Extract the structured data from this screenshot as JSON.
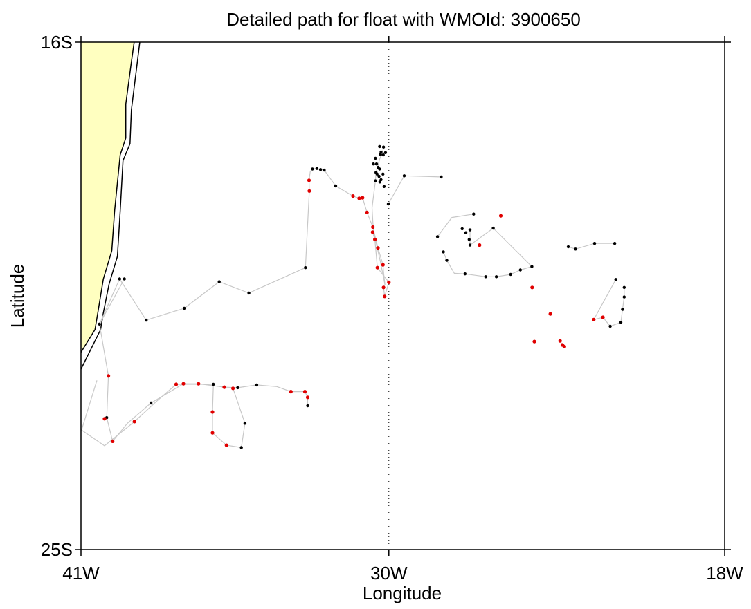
{
  "chart_data": {
    "type": "scatter",
    "title": "Detailed path for float with WMOId: 3900650",
    "xlabel": "Longitude",
    "ylabel": "Latitude",
    "xlim": [
      -41,
      -18
    ],
    "ylim": [
      -25,
      -16
    ],
    "x_ticks": [
      {
        "value": -41,
        "label": "41W"
      },
      {
        "value": -30,
        "label": "30W"
      },
      {
        "value": -18,
        "label": "18W"
      }
    ],
    "y_ticks": [
      {
        "value": -16,
        "label": "16S"
      },
      {
        "value": -25,
        "label": "25S"
      }
    ],
    "reference_line": {
      "lon": -30,
      "style": "dotted"
    },
    "colors": {
      "land": "#ffffc0",
      "track": "#c8c8c8",
      "red": "#e00000",
      "black": "#000000"
    },
    "coastline": [
      [
        -39.1,
        -16
      ],
      [
        -39.2,
        -16.35
      ],
      [
        -39.4,
        -17.1
      ],
      [
        -39.4,
        -17.7
      ],
      [
        -39.6,
        -18.0
      ],
      [
        -39.8,
        -19.0
      ],
      [
        -39.9,
        -19.7
      ],
      [
        -40.2,
        -20.2
      ],
      [
        -40.4,
        -20.8
      ],
      [
        -40.5,
        -21.1
      ],
      [
        -41,
        -21.5
      ]
    ],
    "shelf_contour": [
      [
        -38.9,
        -16
      ],
      [
        -39.0,
        -16.4
      ],
      [
        -39.2,
        -17.2
      ],
      [
        -39.25,
        -17.8
      ],
      [
        -39.5,
        -18.1
      ],
      [
        -39.6,
        -19.0
      ],
      [
        -39.7,
        -19.8
      ],
      [
        -40.0,
        -20.3
      ],
      [
        -40.2,
        -20.8
      ],
      [
        -40.3,
        -21.1
      ],
      [
        -41,
        -21.8
      ]
    ],
    "tracks": [
      [
        [
          -39.45,
          -20.2
        ],
        [
          -40.34,
          -21.0
        ],
        [
          -40.02,
          -21.92
        ],
        [
          -40.08,
          -22.66
        ],
        [
          -39.87,
          -23.08
        ],
        [
          -39.34,
          -22.76
        ],
        [
          -38.5,
          -22.4
        ],
        [
          -37.34,
          -22.06
        ],
        [
          -36.8,
          -22.06
        ],
        [
          -35.88,
          -22.12
        ],
        [
          -35.4,
          -22.13
        ],
        [
          -34.72,
          -22.08
        ],
        [
          -34.0,
          -22.11
        ],
        [
          -33.5,
          -22.2
        ],
        [
          -33.0,
          -22.2
        ],
        [
          -32.9,
          -22.3
        ],
        [
          -32.9,
          -22.45
        ]
      ],
      [
        [
          -40.43,
          -22.0
        ],
        [
          -40.98,
          -22.88
        ],
        [
          -40.16,
          -23.16
        ],
        [
          -39.09,
          -22.73
        ],
        [
          -38.3,
          -22.37
        ],
        [
          -37.6,
          -22.07
        ],
        [
          -36.27,
          -22.07
        ],
        [
          -36.3,
          -22.56
        ],
        [
          -36.3,
          -22.93
        ],
        [
          -35.8,
          -23.15
        ],
        [
          -35.27,
          -23.19
        ],
        [
          -35.14,
          -22.76
        ],
        [
          -35.57,
          -22.14
        ]
      ],
      [
        [
          -40.34,
          -21.0
        ],
        [
          -39.62,
          -20.2
        ],
        [
          -38.67,
          -20.93
        ],
        [
          -37.31,
          -20.72
        ],
        [
          -36.06,
          -20.25
        ],
        [
          -35.0,
          -20.45
        ],
        [
          -32.98,
          -20.0
        ],
        [
          -32.84,
          -18.64
        ],
        [
          -32.85,
          -18.45
        ],
        [
          -32.81,
          -18.3
        ],
        [
          -32.73,
          -18.25
        ],
        [
          -32.57,
          -18.24
        ],
        [
          -32.44,
          -18.26
        ],
        [
          -32.31,
          -18.27
        ],
        [
          -31.9,
          -18.55
        ],
        [
          -31.28,
          -18.73
        ],
        [
          -31.06,
          -18.77
        ],
        [
          -30.94,
          -18.76
        ]
      ],
      [
        [
          -30.94,
          -18.76
        ],
        [
          -30.78,
          -19.02
        ],
        [
          -30.57,
          -19.28
        ],
        [
          -30.39,
          -19.65
        ],
        [
          -30.21,
          -19.95
        ],
        [
          -30.19,
          -20.08
        ],
        [
          -30.14,
          -20.3
        ],
        [
          -30.19,
          -20.35
        ],
        [
          -30.15,
          -20.51
        ],
        [
          -30.0,
          -20.26
        ],
        [
          -30.41,
          -20.0
        ],
        [
          -30.5,
          -19.5
        ],
        [
          -30.58,
          -19.37
        ]
      ],
      [
        [
          -30.14,
          -20.3
        ],
        [
          -30.3,
          -19.9
        ],
        [
          -30.55,
          -19.35
        ],
        [
          -30.6,
          -18.94
        ],
        [
          -30.48,
          -18.46
        ],
        [
          -30.46,
          -18.31
        ],
        [
          -30.33,
          -18.08
        ],
        [
          -30.17,
          -17.86
        ]
      ],
      [
        [
          -30.02,
          -18.87
        ],
        [
          -29.45,
          -18.37
        ],
        [
          -28.13,
          -18.39
        ]
      ],
      [
        [
          -28.26,
          -19.45
        ],
        [
          -27.75,
          -19.11
        ],
        [
          -26.97,
          -19.05
        ]
      ],
      [
        [
          -27.1,
          -19.33
        ],
        [
          -27.1,
          -19.6
        ],
        [
          -26.27,
          -19.3
        ],
        [
          -24.89,
          -19.98
        ],
        [
          -25.3,
          -20.04
        ],
        [
          -25.65,
          -20.12
        ],
        [
          -26.16,
          -20.16
        ],
        [
          -26.54,
          -20.16
        ],
        [
          -27.28,
          -20.11
        ],
        [
          -27.66,
          -20.1
        ],
        [
          -27.93,
          -19.87
        ],
        [
          -28.05,
          -19.72
        ]
      ],
      [
        [
          -23.59,
          -19.63
        ],
        [
          -23.33,
          -19.67
        ],
        [
          -22.65,
          -19.57
        ],
        [
          -21.93,
          -19.57
        ]
      ],
      [
        [
          -21.89,
          -20.21
        ],
        [
          -22.68,
          -20.92
        ],
        [
          -22.35,
          -20.88
        ],
        [
          -22.09,
          -21.04
        ],
        [
          -21.71,
          -20.97
        ],
        [
          -21.65,
          -20.74
        ],
        [
          -21.59,
          -20.52
        ],
        [
          -21.59,
          -20.35
        ]
      ],
      [
        [
          -23.88,
          -21.3
        ],
        [
          -23.8,
          -21.37
        ],
        [
          -23.73,
          -21.4
        ]
      ]
    ],
    "points": {
      "black": [
        [
          -39.45,
          -20.2
        ],
        [
          -40.34,
          -21.0
        ],
        [
          -40.08,
          -22.66
        ],
        [
          -38.5,
          -22.4
        ],
        [
          -36.27,
          -22.07
        ],
        [
          -35.27,
          -23.19
        ],
        [
          -35.14,
          -22.76
        ],
        [
          -35.4,
          -22.13
        ],
        [
          -34.72,
          -22.08
        ],
        [
          -32.9,
          -22.45
        ],
        [
          -39.62,
          -20.2
        ],
        [
          -38.67,
          -20.93
        ],
        [
          -37.31,
          -20.72
        ],
        [
          -36.06,
          -20.25
        ],
        [
          -35.0,
          -20.45
        ],
        [
          -32.98,
          -20.0
        ],
        [
          -32.84,
          -18.64
        ],
        [
          -32.85,
          -18.45
        ],
        [
          -32.73,
          -18.25
        ],
        [
          -32.57,
          -18.24
        ],
        [
          -32.44,
          -18.26
        ],
        [
          -32.31,
          -18.27
        ],
        [
          -31.9,
          -18.55
        ],
        [
          -30.19,
          -17.86
        ],
        [
          -30.33,
          -17.85
        ],
        [
          -30.12,
          -17.96
        ],
        [
          -30.28,
          -17.95
        ],
        [
          -30.3,
          -17.99
        ],
        [
          -30.2,
          -18.0
        ],
        [
          -30.48,
          -18.06
        ],
        [
          -30.55,
          -18.16
        ],
        [
          -30.44,
          -18.16
        ],
        [
          -30.38,
          -18.22
        ],
        [
          -30.33,
          -18.25
        ],
        [
          -30.42,
          -18.34
        ],
        [
          -30.21,
          -18.34
        ],
        [
          -30.28,
          -18.44
        ],
        [
          -30.46,
          -18.31
        ],
        [
          -30.48,
          -18.46
        ],
        [
          -30.17,
          -18.56
        ],
        [
          -30.02,
          -18.87
        ],
        [
          -30.35,
          -18.38
        ],
        [
          -30.32,
          -18.48
        ],
        [
          -29.45,
          -18.37
        ],
        [
          -28.13,
          -18.39
        ],
        [
          -28.26,
          -19.45
        ],
        [
          -27.1,
          -19.33
        ],
        [
          -27.38,
          -19.31
        ],
        [
          -27.25,
          -19.38
        ],
        [
          -27.1,
          -19.6
        ],
        [
          -27.13,
          -19.5
        ],
        [
          -26.97,
          -19.05
        ],
        [
          -26.27,
          -19.3
        ],
        [
          -26.54,
          -20.16
        ],
        [
          -26.16,
          -20.16
        ],
        [
          -25.65,
          -20.12
        ],
        [
          -25.3,
          -20.04
        ],
        [
          -24.89,
          -19.98
        ],
        [
          -23.59,
          -19.63
        ],
        [
          -23.33,
          -19.67
        ],
        [
          -22.65,
          -19.57
        ],
        [
          -21.93,
          -19.57
        ],
        [
          -21.89,
          -20.21
        ],
        [
          -22.09,
          -21.04
        ],
        [
          -21.71,
          -20.97
        ],
        [
          -21.65,
          -20.74
        ],
        [
          -21.59,
          -20.52
        ],
        [
          -21.59,
          -20.35
        ],
        [
          -27.93,
          -19.87
        ],
        [
          -28.05,
          -19.72
        ],
        [
          -27.28,
          -20.11
        ]
      ],
      "red": [
        [
          -40.02,
          -21.92
        ],
        [
          -40.16,
          -22.68
        ],
        [
          -39.87,
          -23.08
        ],
        [
          -39.09,
          -22.73
        ],
        [
          -37.34,
          -22.06
        ],
        [
          -36.8,
          -22.06
        ],
        [
          -35.88,
          -22.12
        ],
        [
          -33.5,
          -22.2
        ],
        [
          -33.0,
          -22.2
        ],
        [
          -32.9,
          -22.3
        ],
        [
          -37.6,
          -22.07
        ],
        [
          -36.3,
          -22.56
        ],
        [
          -36.3,
          -22.93
        ],
        [
          -35.8,
          -23.15
        ],
        [
          -35.57,
          -22.14
        ],
        [
          -32.84,
          -18.64
        ],
        [
          -32.85,
          -18.45
        ],
        [
          -31.28,
          -18.73
        ],
        [
          -31.06,
          -18.77
        ],
        [
          -30.94,
          -18.76
        ],
        [
          -30.78,
          -19.02
        ],
        [
          -30.57,
          -19.28
        ],
        [
          -30.39,
          -19.65
        ],
        [
          -30.21,
          -19.95
        ],
        [
          -30.0,
          -20.26
        ],
        [
          -30.15,
          -20.51
        ],
        [
          -30.19,
          -20.35
        ],
        [
          -30.41,
          -20.0
        ],
        [
          -30.5,
          -19.5
        ],
        [
          -30.58,
          -19.37
        ],
        [
          -26.76,
          -19.6
        ],
        [
          -26.0,
          -19.08
        ],
        [
          -24.8,
          -21.31
        ],
        [
          -24.88,
          -20.35
        ],
        [
          -24.23,
          -20.82
        ],
        [
          -23.88,
          -21.3
        ],
        [
          -23.8,
          -21.37
        ],
        [
          -23.73,
          -21.4
        ],
        [
          -22.35,
          -20.88
        ],
        [
          -22.68,
          -20.92
        ]
      ]
    }
  }
}
